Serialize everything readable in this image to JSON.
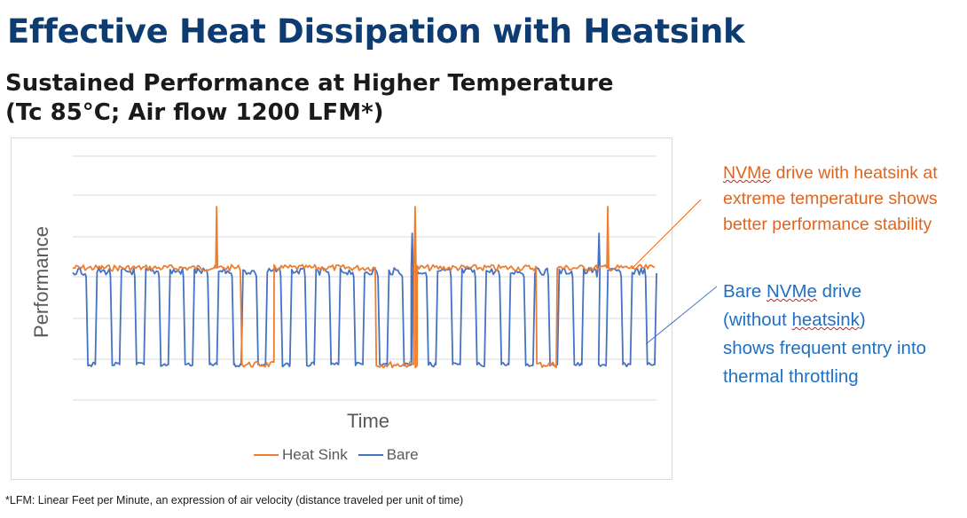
{
  "title": "Effective Heat Dissipation with Heatsink",
  "subtitle_lines": [
    "Sustained Performance at Higher Temperature",
    "(Tc 85°C; Air flow 1200 LFM*)"
  ],
  "chart_data": {
    "type": "line",
    "xlabel": "Time",
    "ylabel": "Performance",
    "legend_position": "bottom",
    "grid": true,
    "series": [
      {
        "name": "Heat Sink",
        "color": "#ed7d31",
        "segments": [
          [
            0,
            0.05,
            "high"
          ],
          [
            0.05,
            0.29,
            "high"
          ],
          [
            0.29,
            0.345,
            "low"
          ],
          [
            0.345,
            0.52,
            "high"
          ],
          [
            0.52,
            0.59,
            "low"
          ],
          [
            0.59,
            0.795,
            "high"
          ],
          [
            0.795,
            0.83,
            "low"
          ],
          [
            0.83,
            1.0,
            "high"
          ]
        ],
        "spikes": [
          0.245,
          0.585,
          0.915
        ]
      },
      {
        "name": "Bare",
        "color": "#4472c4",
        "throttle_count": 24,
        "spikes": [
          0.58,
          0.9
        ]
      }
    ]
  },
  "annotations": {
    "heatsink": [
      "NVMe drive with heatsink at",
      "extreme temperature shows",
      "better performance stability"
    ],
    "bare": [
      "Bare NVMe drive",
      "(without heatsink)",
      "shows frequent entry into",
      "thermal throttling"
    ]
  },
  "footnote": "*LFM: Linear Feet per Minute, an expression of air velocity (distance traveled per unit of time)"
}
